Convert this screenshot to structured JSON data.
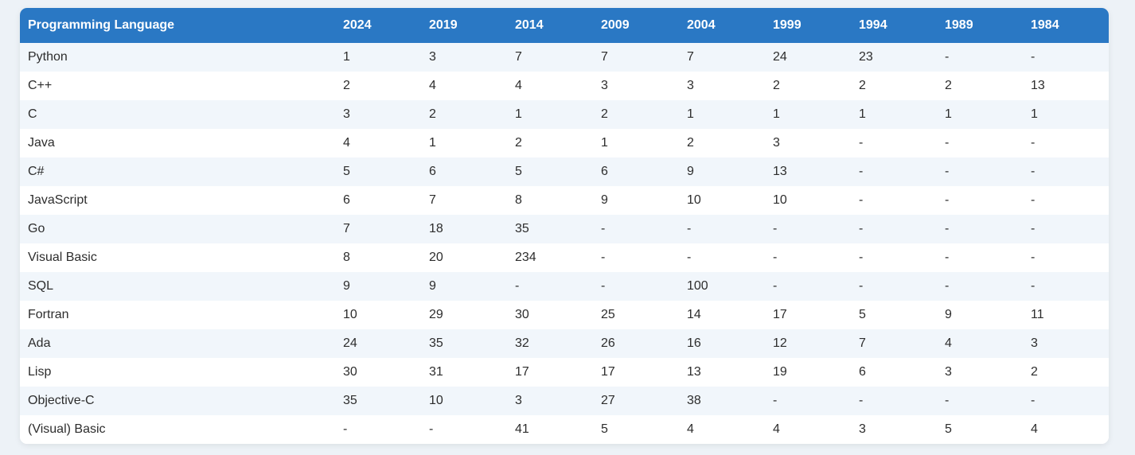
{
  "colors": {
    "header_bg": "#2a78c4",
    "header_text": "#ffffff",
    "row_alt": "#f1f6fb",
    "row": "#ffffff",
    "page_bg": "#edf2f7"
  },
  "chart_data": {
    "type": "table",
    "columns": [
      "Programming Language",
      "2024",
      "2019",
      "2014",
      "2009",
      "2004",
      "1999",
      "1994",
      "1989",
      "1984"
    ],
    "rows": [
      [
        "Python",
        "1",
        "3",
        "7",
        "7",
        "7",
        "24",
        "23",
        "-",
        "-"
      ],
      [
        "C++",
        "2",
        "4",
        "4",
        "3",
        "3",
        "2",
        "2",
        "2",
        "13"
      ],
      [
        "C",
        "3",
        "2",
        "1",
        "2",
        "1",
        "1",
        "1",
        "1",
        "1"
      ],
      [
        "Java",
        "4",
        "1",
        "2",
        "1",
        "2",
        "3",
        "-",
        "-",
        "-"
      ],
      [
        "C#",
        "5",
        "6",
        "5",
        "6",
        "9",
        "13",
        "-",
        "-",
        "-"
      ],
      [
        "JavaScript",
        "6",
        "7",
        "8",
        "9",
        "10",
        "10",
        "-",
        "-",
        "-"
      ],
      [
        "Go",
        "7",
        "18",
        "35",
        "-",
        "-",
        "-",
        "-",
        "-",
        "-"
      ],
      [
        "Visual Basic",
        "8",
        "20",
        "234",
        "-",
        "-",
        "-",
        "-",
        "-",
        "-"
      ],
      [
        "SQL",
        "9",
        "9",
        "-",
        "-",
        "100",
        "-",
        "-",
        "-",
        "-"
      ],
      [
        "Fortran",
        "10",
        "29",
        "30",
        "25",
        "14",
        "17",
        "5",
        "9",
        "11"
      ],
      [
        "Ada",
        "24",
        "35",
        "32",
        "26",
        "16",
        "12",
        "7",
        "4",
        "3"
      ],
      [
        "Lisp",
        "30",
        "31",
        "17",
        "17",
        "13",
        "19",
        "6",
        "3",
        "2"
      ],
      [
        "Objective-C",
        "35",
        "10",
        "3",
        "27",
        "38",
        "-",
        "-",
        "-",
        "-"
      ],
      [
        "(Visual) Basic",
        "-",
        "-",
        "41",
        "5",
        "4",
        "4",
        "3",
        "5",
        "4"
      ]
    ]
  }
}
